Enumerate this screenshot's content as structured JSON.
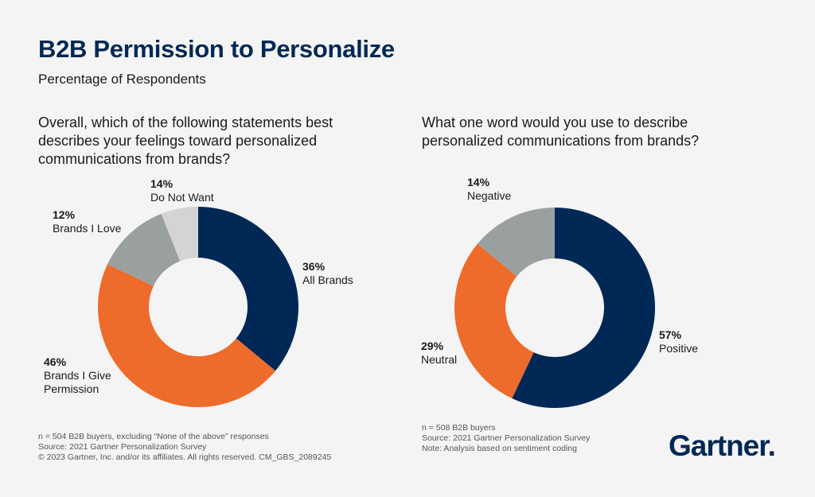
{
  "title": "B2B Permission to Personalize",
  "subtitle": "Percentage of Respondents",
  "chart_data": [
    {
      "type": "pie",
      "donut": true,
      "title": "Overall, which of the following statements best describes your feelings toward personalized communications from brands?",
      "categories": [
        "All Brands",
        "Brands I Give Permission",
        "Brands I Love",
        "Do Not Want"
      ],
      "values": [
        36,
        46,
        12,
        14
      ],
      "labels": [
        "36%",
        "46%",
        "12%",
        "14%"
      ],
      "colors": [
        "#002856",
        "#ed6b2b",
        "#9aa09f",
        "#d4d4d4"
      ],
      "notes": [
        "n = 504 B2B buyers, excluding “None of the above” responses",
        "Source: 2021 Gartner Personalization Survey",
        "© 2023 Gartner, Inc. and/or its affiliates. All rights reserved. CM_GBS_2089245"
      ]
    },
    {
      "type": "pie",
      "donut": true,
      "title": "What one word would you use to describe personalized communications from brands?",
      "categories": [
        "Positive",
        "Neutral",
        "Negative"
      ],
      "values": [
        57,
        29,
        14
      ],
      "labels": [
        "57%",
        "29%",
        "14%"
      ],
      "colors": [
        "#002856",
        "#ed6b2b",
        "#9aa09f"
      ],
      "notes": [
        "n = 508 B2B buyers",
        "Source: 2021 Gartner Personalization Survey",
        "Note: Analysis based on sentiment coding"
      ]
    }
  ],
  "logo": "Gartner."
}
